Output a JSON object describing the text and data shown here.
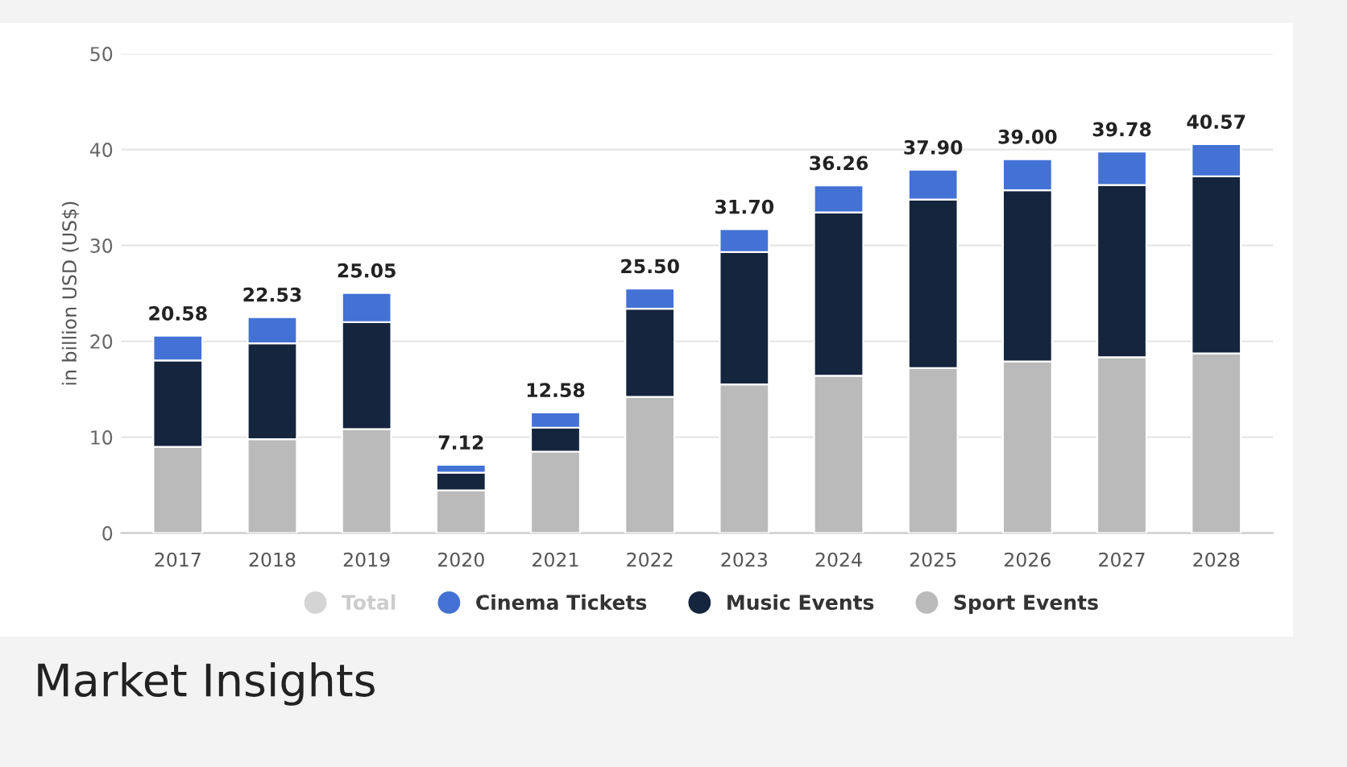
{
  "chart_data": {
    "type": "bar",
    "stacked": true,
    "ylabel": "in billion USD (US$)",
    "categories": [
      "2017",
      "2018",
      "2019",
      "2020",
      "2021",
      "2022",
      "2023",
      "2024",
      "2025",
      "2026",
      "2027",
      "2028"
    ],
    "series": [
      {
        "name": "Sport Events",
        "color": "#bababa",
        "values": [
          9.0,
          9.8,
          10.85,
          4.46,
          8.5,
          14.2,
          15.5,
          16.4,
          17.2,
          17.9,
          18.35,
          18.75
        ]
      },
      {
        "name": "Music Events",
        "color": "#15253d",
        "values": [
          9.0,
          10.0,
          11.15,
          1.84,
          2.5,
          9.2,
          13.8,
          17.05,
          17.6,
          17.85,
          17.95,
          18.45
        ]
      },
      {
        "name": "Cinema Tickets",
        "color": "#4372d4",
        "values": [
          2.58,
          2.73,
          3.05,
          0.82,
          1.58,
          2.1,
          2.4,
          2.81,
          3.1,
          3.25,
          3.48,
          3.37
        ]
      },
      {
        "name": "Total",
        "color": "#d4d4d4",
        "values": [
          null,
          null,
          null,
          null,
          null,
          null,
          null,
          null,
          null,
          null,
          null,
          null
        ]
      }
    ],
    "totals": [
      "20.58",
      "22.53",
      "25.05",
      "7.12",
      "12.58",
      "25.50",
      "31.70",
      "36.26",
      "37.90",
      "39.00",
      "39.78",
      "40.57"
    ],
    "ylim": [
      0,
      50
    ],
    "yticks": [
      0,
      10,
      20,
      30,
      40,
      50
    ],
    "grid": "y",
    "legend": "bottom",
    "annotations": [
      "Market Insights"
    ]
  }
}
